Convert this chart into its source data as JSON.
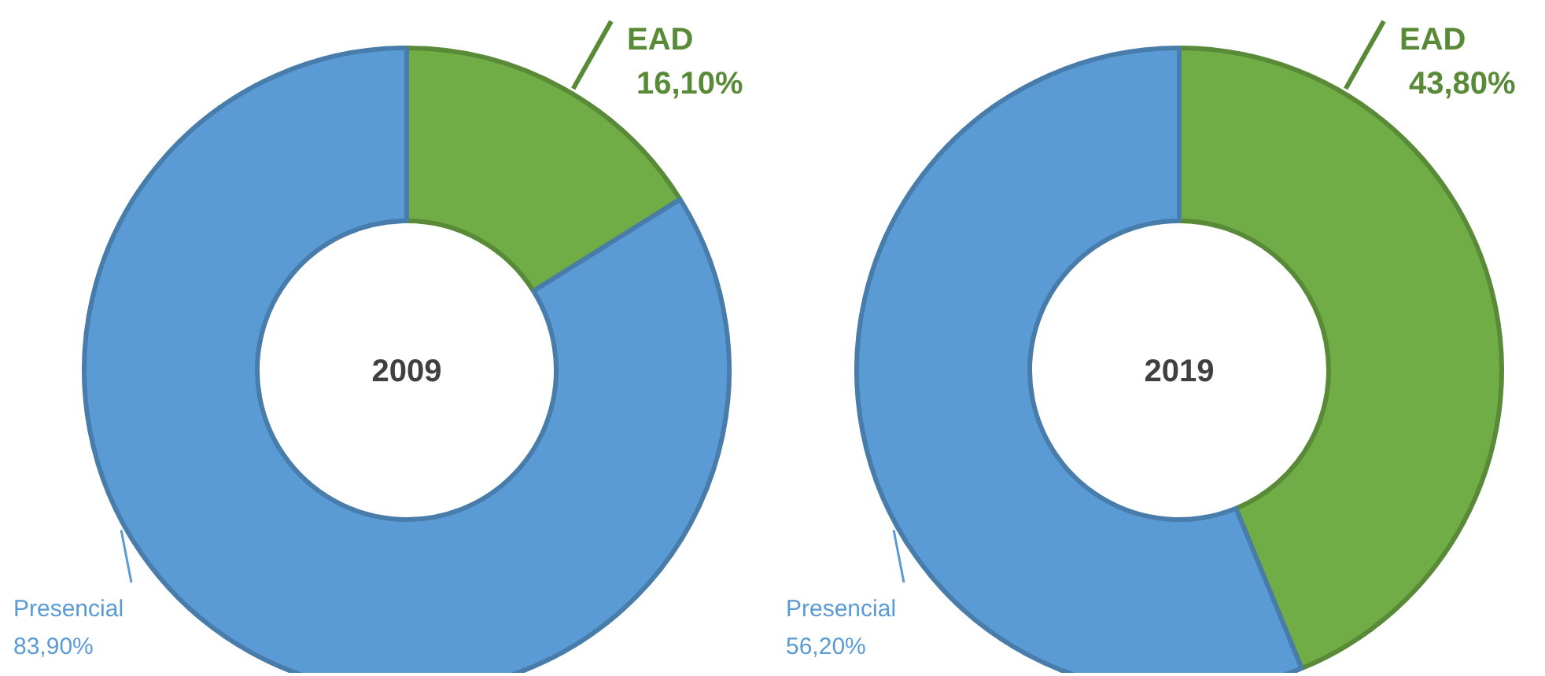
{
  "chart_data": [
    {
      "type": "donut",
      "title": "2009",
      "categories": [
        "EAD",
        "Presencial"
      ],
      "values": [
        16.1,
        83.9
      ],
      "colors": [
        "#70ad47",
        "#5b9bd5"
      ],
      "value_labels": [
        "16,10%",
        "83,90%"
      ]
    },
    {
      "type": "donut",
      "title": "2019",
      "categories": [
        "EAD",
        "Presencial"
      ],
      "values": [
        43.8,
        56.2
      ],
      "colors": [
        "#70ad47",
        "#5b9bd5"
      ],
      "value_labels": [
        "43,80%",
        "56,20%"
      ]
    }
  ]
}
